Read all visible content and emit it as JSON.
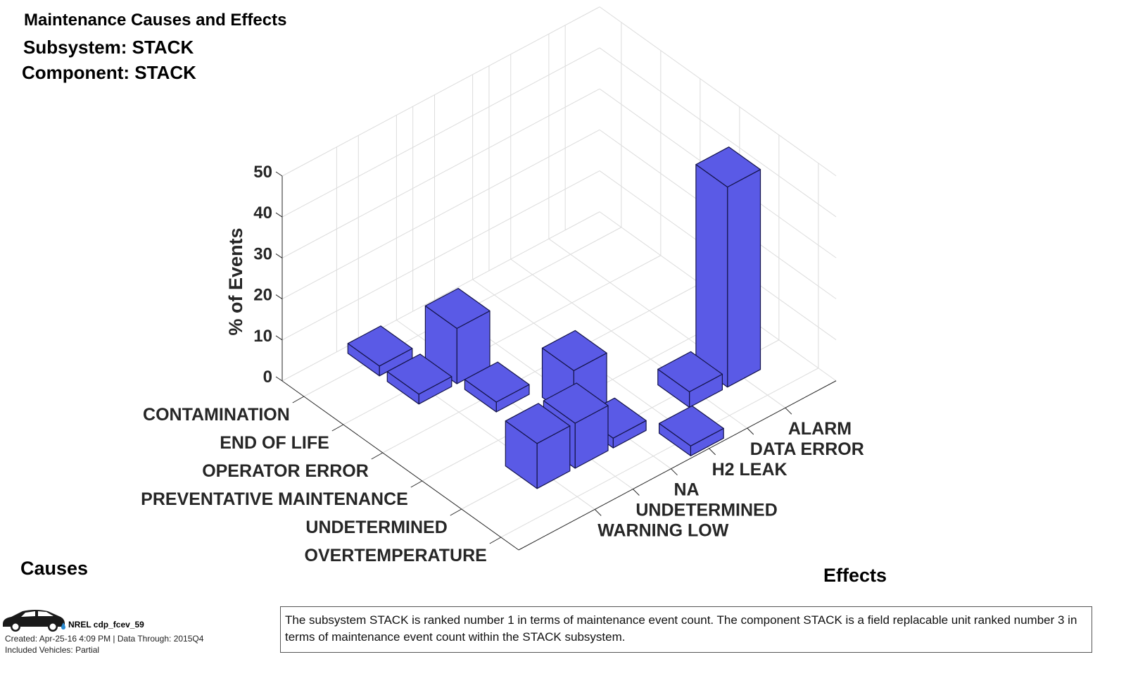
{
  "header": {
    "title": "Maintenance Causes and Effects",
    "subsystem": "Subsystem: STACK",
    "component": "Component: STACK"
  },
  "axes": {
    "causes_title": "Causes",
    "effects_title": "Effects"
  },
  "footer": {
    "logo_icon": "car-with-hydrogen-drop-icon",
    "name": "NREL cdp_fcev_59",
    "created": "Created: Apr-25-16  4:09 PM | Data Through: 2015Q4",
    "included": "Included Vehicles: Partial"
  },
  "description": "The subsystem STACK is ranked number 1 in terms of maintenance event count.  The component STACK is a field replacable unit ranked number 3 in terms of maintenance event count within the STACK subsystem.",
  "chart_data": {
    "type": "bar3d",
    "title": "Maintenance Causes and Effects",
    "zlabel": "% of Events",
    "xlabel": "Causes",
    "ylabel": "Effects",
    "zlim": [
      0,
      50
    ],
    "zticks": [
      0,
      10,
      20,
      30,
      40,
      50
    ],
    "grid": true,
    "bar_color": "#5a5ae6",
    "causes": [
      "CONTAMINATION",
      "END OF LIFE",
      "OPERATOR ERROR",
      "PREVENTATIVE MAINTENANCE",
      "UNDETERMINED",
      "OVERTEMPERATURE"
    ],
    "effects": [
      "WARNING LOW",
      "UNDETERMINED",
      "NA",
      "H2 LEAK",
      "DATA ERROR",
      "ALARM"
    ],
    "bars": [
      {
        "cause": "CONTAMINATION",
        "effect": "WARNING LOW",
        "value": 2.4
      },
      {
        "cause": "END OF LIFE",
        "effect": "WARNING LOW",
        "value": 2.4
      },
      {
        "cause": "END OF LIFE",
        "effect": "UNDETERMINED",
        "value": 13.5
      },
      {
        "cause": "OPERATOR ERROR",
        "effect": "UNDETERMINED",
        "value": 2.4
      },
      {
        "cause": "PREVENTATIVE MAINTENANCE",
        "effect": "NA",
        "value": 12.0
      },
      {
        "cause": "UNDETERMINED",
        "effect": "WARNING LOW",
        "value": 11.0
      },
      {
        "cause": "UNDETERMINED",
        "effect": "UNDETERMINED",
        "value": 11.0
      },
      {
        "cause": "UNDETERMINED",
        "effect": "NA",
        "value": 2.4
      },
      {
        "cause": "UNDETERMINED",
        "effect": "DATA ERROR",
        "value": 3.8
      },
      {
        "cause": "UNDETERMINED",
        "effect": "ALARM",
        "value": 48.8
      },
      {
        "cause": "OVERTEMPERATURE",
        "effect": "H2 LEAK",
        "value": 2.4
      }
    ]
  }
}
